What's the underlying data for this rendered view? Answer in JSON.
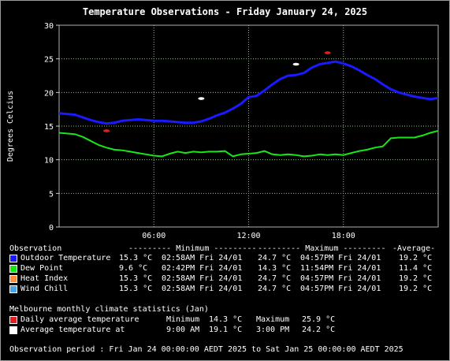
{
  "title": "Temperature Observations - Friday January 24, 2025",
  "colors": {
    "outdoor": "#1a1aff",
    "dew": "#19e619",
    "heat": "#ff8c3a",
    "chill": "#4aa3e6",
    "avg_marker": "#e02020",
    "avg_at_marker": "#ffffff"
  },
  "chart_data": {
    "type": "line",
    "title": "Temperature Observations - Friday January 24, 2025",
    "ylabel": "Degrees Celcius",
    "xlabel": "",
    "ylim": [
      0,
      30
    ],
    "yticks": [
      "0",
      "5",
      "10",
      "15",
      "20",
      "25",
      "30"
    ],
    "xlim_hours": [
      0,
      24
    ],
    "xticks": [
      "06:00",
      "12:00",
      "18:00"
    ],
    "xtick_hours": [
      6,
      12,
      18
    ],
    "grid": true,
    "series": [
      {
        "name": "Outdoor Temperature",
        "color_key": "outdoor",
        "x_hours": [
          0,
          0.5,
          1,
          1.5,
          2,
          2.5,
          3,
          3.5,
          4,
          4.5,
          5,
          5.5,
          6,
          6.5,
          7,
          7.5,
          8,
          8.5,
          9,
          9.5,
          10,
          10.5,
          11,
          11.5,
          12,
          12.5,
          13,
          13.5,
          14,
          14.5,
          15,
          15.5,
          16,
          16.5,
          17,
          17.5,
          18,
          18.5,
          19,
          19.5,
          20,
          20.5,
          21,
          21.5,
          22,
          22.5,
          23,
          23.5,
          24
        ],
        "y": [
          16.9,
          16.8,
          16.7,
          16.3,
          15.9,
          15.6,
          15.4,
          15.5,
          15.8,
          15.9,
          16.0,
          15.9,
          15.8,
          15.8,
          15.7,
          15.6,
          15.5,
          15.5,
          15.7,
          16.1,
          16.6,
          17.0,
          17.6,
          18.3,
          19.3,
          19.5,
          20.3,
          21.2,
          22.0,
          22.5,
          22.6,
          22.9,
          23.7,
          24.2,
          24.4,
          24.6,
          24.3,
          23.9,
          23.3,
          22.6,
          22.0,
          21.2,
          20.5,
          20.0,
          19.7,
          19.4,
          19.2,
          19.0,
          19.2
        ]
      },
      {
        "name": "Dew Point",
        "color_key": "dew",
        "x_hours": [
          0,
          0.5,
          1,
          1.5,
          2,
          2.5,
          3,
          3.5,
          4,
          4.5,
          5,
          5.5,
          6,
          6.5,
          7,
          7.5,
          8,
          8.5,
          9,
          9.5,
          10,
          10.5,
          11,
          11.5,
          12,
          12.5,
          13,
          13.5,
          14,
          14.5,
          15,
          15.5,
          16,
          16.5,
          17,
          17.5,
          18,
          18.5,
          19,
          19.5,
          20,
          20.5,
          21,
          21.5,
          22,
          22.5,
          23,
          23.5,
          24
        ],
        "y": [
          14.0,
          13.9,
          13.8,
          13.4,
          12.8,
          12.2,
          11.8,
          11.5,
          11.4,
          11.2,
          11.0,
          10.8,
          10.6,
          10.5,
          10.9,
          11.2,
          11.0,
          11.2,
          11.1,
          11.2,
          11.2,
          11.3,
          10.5,
          10.8,
          10.9,
          11.0,
          11.3,
          10.8,
          10.7,
          10.8,
          10.7,
          10.5,
          10.6,
          10.8,
          10.7,
          10.8,
          10.7,
          11.0,
          11.3,
          11.5,
          11.8,
          12.0,
          13.2,
          13.3,
          13.3,
          13.3,
          13.6,
          14.0,
          14.3
        ]
      },
      {
        "name": "Daily average temperature",
        "color_key": "avg_marker",
        "marks": [
          {
            "x_hours": 3.0,
            "y": 14.3
          },
          {
            "x_hours": 17.0,
            "y": 25.9
          }
        ]
      },
      {
        "name": "Average temperature at",
        "color_key": "avg_at_marker",
        "marks": [
          {
            "x_hours": 9.0,
            "y": 19.1
          },
          {
            "x_hours": 15.0,
            "y": 24.2
          }
        ]
      }
    ]
  },
  "legend": {
    "header": {
      "observation": "Observation",
      "minimum": "--------- Minimum ---------",
      "maximum": "--------- Maximum ---------",
      "average": "-Average-"
    },
    "rows": [
      {
        "label": "Outdoor Temperature",
        "color_key": "outdoor",
        "min": "15.3 °C",
        "min_time": "02:58AM Fri 24/01",
        "max": "24.7 °C",
        "max_time": "04:57PM Fri 24/01",
        "avg": "19.2 °C"
      },
      {
        "label": "Dew Point",
        "color_key": "dew",
        "min": "9.6 °C",
        "min_time": "02:42PM Fri 24/01",
        "max": "14.3 °C",
        "max_time": "11:54PM Fri 24/01",
        "avg": "11.4 °C"
      },
      {
        "label": "Heat Index",
        "color_key": "heat",
        "min": "15.3 °C",
        "min_time": "02:58AM Fri 24/01",
        "max": "24.7 °C",
        "max_time": "04:57PM Fri 24/01",
        "avg": "19.2 °C"
      },
      {
        "label": "Wind Chill",
        "color_key": "chill",
        "min": "15.3 °C",
        "min_time": "02:58AM Fri 24/01",
        "max": "24.7 °C",
        "max_time": "04:57PM Fri 24/01",
        "avg": "19.2 °C"
      }
    ]
  },
  "climate": {
    "heading": "Melbourne monthly climate statistics (Jan)",
    "rows": [
      {
        "label": "Daily average temperature",
        "color_key": "avg_marker",
        "a_label": "Minimum",
        "a_value": "14.3 °C",
        "b_label": "Maximum",
        "b_value": "25.9 °C"
      },
      {
        "label": "Average temperature at",
        "color_key": "avg_at_marker",
        "a_label": "9:00 AM",
        "a_value": "19.1 °C",
        "b_label": "3:00 PM",
        "b_value": "24.2 °C"
      }
    ]
  },
  "period": "Observation period : Fri Jan 24 00:00:00 AEDT 2025 to Sat Jan 25 00:00:00 AEDT 2025"
}
